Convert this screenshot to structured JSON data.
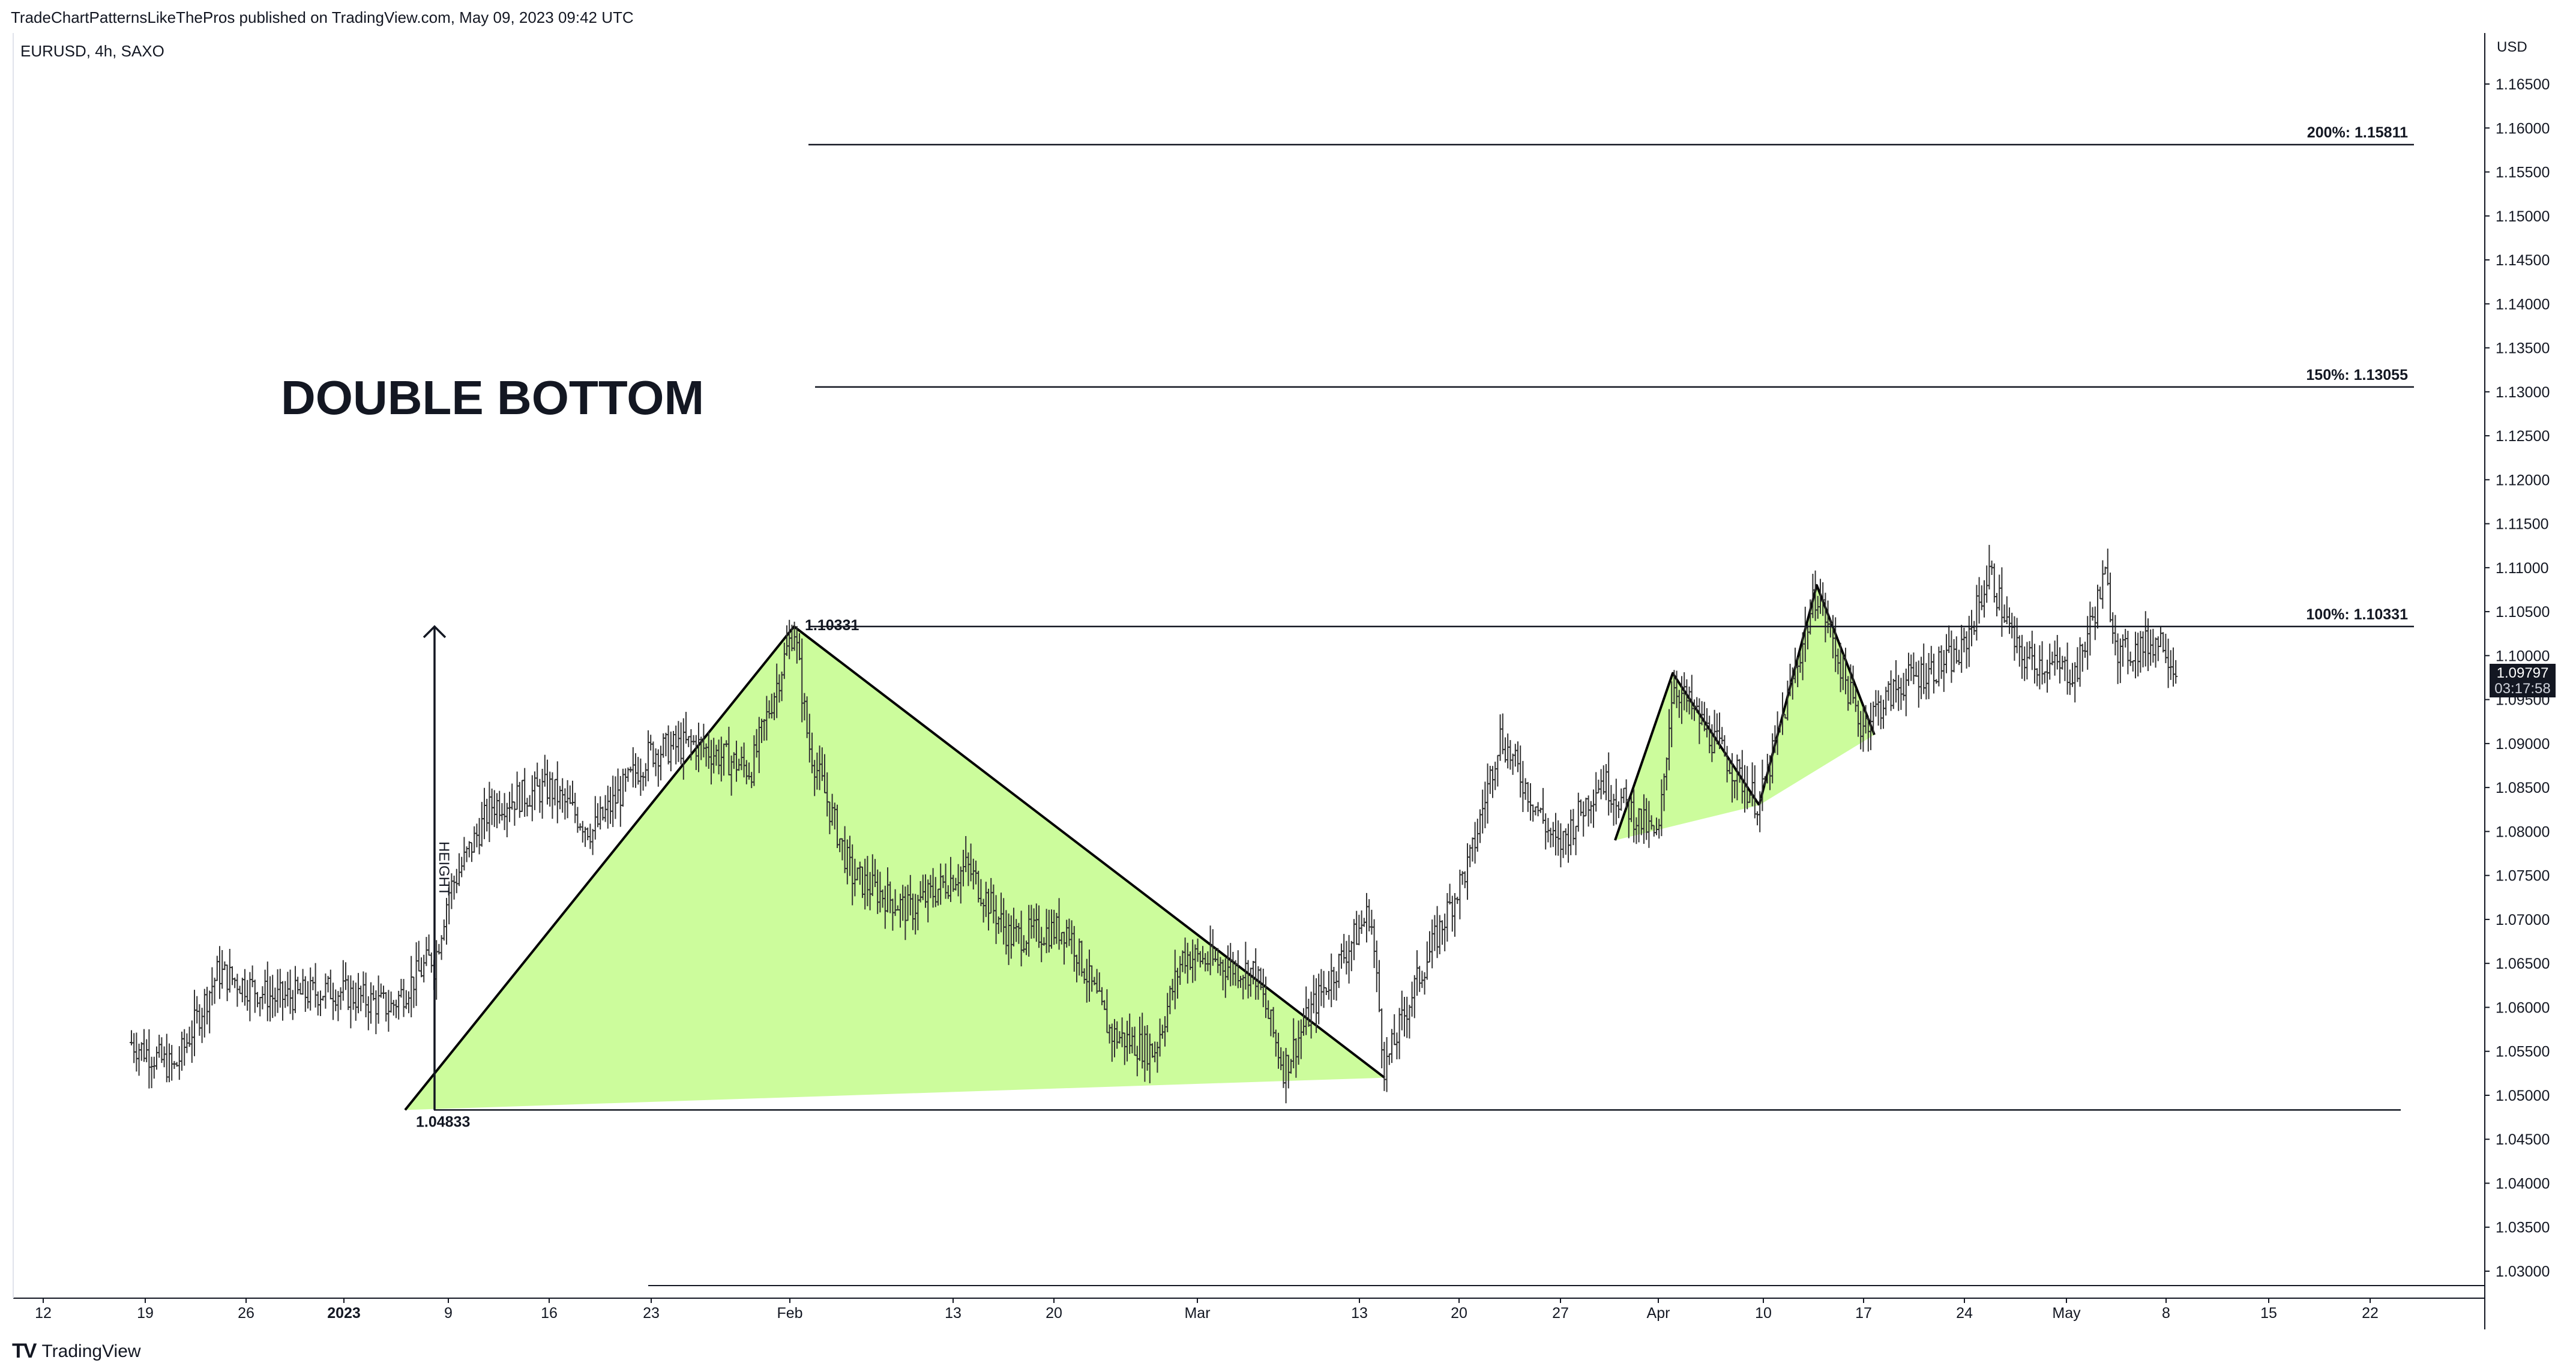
{
  "header": {
    "published_line": "TradeChartPatternsLikeThePros published on TradingView.com, May 09, 2023 09:42 UTC",
    "symbol_line": "EURUSD, 4h, SAXO"
  },
  "footer": {
    "logo_mark": "TV",
    "logo_text": "TradingView"
  },
  "last_price": {
    "price": "1.09797",
    "countdown": "03:17:58"
  },
  "chart_data": {
    "type": "ohlc",
    "title": "DOUBLE BOTTOM",
    "currency_label": "USD",
    "ylim": [
      1.025,
      1.17
    ],
    "y_ticks": [
      "1.03000",
      "1.03500",
      "1.04000",
      "1.04500",
      "1.05000",
      "1.05500",
      "1.06000",
      "1.06500",
      "1.07000",
      "1.07500",
      "1.08000",
      "1.08500",
      "1.09000",
      "1.09500",
      "1.10000",
      "1.10500",
      "1.11000",
      "1.11500",
      "1.12000",
      "1.12500",
      "1.13000",
      "1.13500",
      "1.14000",
      "1.14500",
      "1.15000",
      "1.15500",
      "1.16000",
      "1.16500"
    ],
    "x_ticks": [
      "12",
      "19",
      "26",
      "2023",
      "9",
      "16",
      "23",
      "Feb",
      "13",
      "20",
      "Mar",
      "13",
      "20",
      "27",
      "Apr",
      "10",
      "17",
      "24",
      "May",
      "8",
      "15",
      "22"
    ],
    "price_path": [
      [
        "Dec 09",
        1.056
      ],
      [
        "Dec 12",
        1.053
      ],
      [
        "Dec 15",
        1.064
      ],
      [
        "Dec 19",
        1.061
      ],
      [
        "Dec 23",
        1.062
      ],
      [
        "Dec 27",
        1.06
      ],
      [
        "Dec 30",
        1.066
      ],
      [
        "Jan 04",
        1.07
      ],
      [
        "Jan 05",
        1.055
      ],
      [
        "Jan 06",
        1.04833
      ],
      [
        "Jan 09",
        1.073
      ],
      [
        "Jan 12",
        1.083
      ],
      [
        "Jan 16",
        1.085
      ],
      [
        "Jan 19",
        1.08
      ],
      [
        "Jan 23",
        1.089
      ],
      [
        "Jan 26",
        1.09
      ],
      [
        "Jan 30",
        1.087
      ],
      [
        "Feb 02",
        1.10331
      ],
      [
        "Feb 03",
        1.09
      ],
      [
        "Feb 06",
        1.075
      ],
      [
        "Feb 10",
        1.071
      ],
      [
        "Feb 14",
        1.076
      ],
      [
        "Feb 17",
        1.068
      ],
      [
        "Feb 21",
        1.069
      ],
      [
        "Feb 24",
        1.057
      ],
      [
        "Feb 27",
        1.055
      ],
      [
        "Mar 01",
        1.066
      ],
      [
        "Mar 06",
        1.064
      ],
      [
        "Mar 08",
        1.053
      ],
      [
        "Mar 10",
        1.06
      ],
      [
        "Mar 14",
        1.071
      ],
      [
        "Mar 15",
        1.053
      ],
      [
        "Mar 17",
        1.062
      ],
      [
        "Mar 21",
        1.077
      ],
      [
        "Mar 23",
        1.091
      ],
      [
        "Mar 27",
        1.078
      ],
      [
        "Mar 30",
        1.086
      ],
      [
        "Apr 03",
        1.079
      ],
      [
        "Apr 04",
        1.097
      ],
      [
        "Apr 07",
        1.09
      ],
      [
        "Apr 10",
        1.083
      ],
      [
        "Apr 14",
        1.1075
      ],
      [
        "Apr 17",
        1.092
      ],
      [
        "Apr 20",
        1.097
      ],
      [
        "Apr 24",
        1.1
      ],
      [
        "Apr 26",
        1.1095
      ],
      [
        "Apr 28",
        1.1
      ],
      [
        "May 02",
        1.098
      ],
      [
        "May 04",
        1.109
      ],
      [
        "May 05",
        1.1
      ],
      [
        "May 08",
        1.102
      ],
      [
        "May 09",
        1.09797
      ]
    ],
    "levels": [
      {
        "label": "200%: 1.15811",
        "value": 1.15811
      },
      {
        "label": "150%: 1.13055",
        "value": 1.13055
      },
      {
        "label": "100%: 1.10331",
        "value": 1.10331
      },
      {
        "label": "",
        "value": 1.04833
      }
    ],
    "point_labels": [
      {
        "text": "1.10331",
        "date": "Feb 02",
        "value": 1.10331
      },
      {
        "text": "1.04833",
        "date": "Jan 06",
        "value": 1.04833
      }
    ],
    "height_label": "HEIGHT",
    "patterns": [
      {
        "name": "double-bottom-triangle",
        "points": [
          [
            "Jan 06",
            1.04833
          ],
          [
            "Feb 02",
            1.10331
          ],
          [
            "Mar 15",
            1.052
          ]
        ]
      },
      {
        "name": "flag-1",
        "points": [
          [
            "Mar 31",
            1.079
          ],
          [
            "Apr 04",
            1.098
          ],
          [
            "Apr 10",
            1.083
          ]
        ]
      },
      {
        "name": "flag-2",
        "points": [
          [
            "Apr 10",
            1.083
          ],
          [
            "Apr 14",
            1.108
          ],
          [
            "Apr 18",
            1.091
          ]
        ]
      }
    ],
    "colors": {
      "pattern_fill": "#ccfc9c",
      "line": "#000000",
      "bars": "#333333"
    }
  }
}
